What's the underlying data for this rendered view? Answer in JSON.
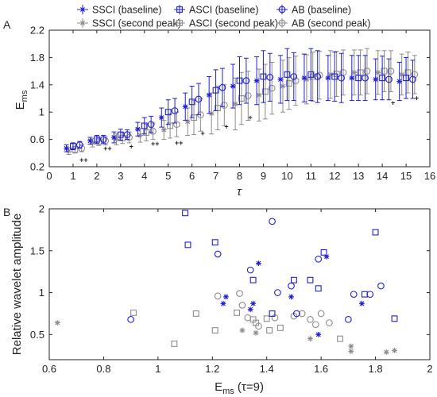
{
  "colors": {
    "baseline": "#1f1fd4",
    "second_peak": "#8c8c8c",
    "axis": "#222222"
  },
  "chart_data": [
    {
      "panel_label": "A",
      "type": "errorbar",
      "xlabel": "τ",
      "ylabel_main": "E",
      "ylabel_sub": "ms",
      "xlim": [
        0,
        16
      ],
      "ylim": [
        0.2,
        2.2
      ],
      "xticks": [
        "0",
        "1",
        "2",
        "3",
        "4",
        "5",
        "6",
        "7",
        "8",
        "9",
        "10",
        "11",
        "12",
        "13",
        "14",
        "15",
        "16"
      ],
      "yticks": [
        "0.2",
        "0.6",
        "1",
        "1.4",
        "1.8",
        "2.2"
      ],
      "grid": false,
      "legend_position": "top",
      "legend": [
        {
          "label": "SSCI (baseline)",
          "marker": "asterisk",
          "group": "baseline"
        },
        {
          "label": "ASCI (baseline)",
          "marker": "square",
          "group": "baseline"
        },
        {
          "label": "AB (baseline)",
          "marker": "circle",
          "group": "baseline"
        },
        {
          "label": "SSCI (second peak)",
          "marker": "asterisk",
          "group": "second_peak"
        },
        {
          "label": "ASCI (second peak)",
          "marker": "square",
          "group": "second_peak"
        },
        {
          "label": "AB (second peak)",
          "marker": "circle",
          "group": "second_peak"
        }
      ],
      "x": [
        1,
        2,
        3,
        4,
        5,
        6,
        7,
        8,
        9,
        10,
        11,
        12,
        13,
        14,
        15
      ],
      "series": [
        {
          "name": "SSCI (baseline)",
          "marker": "asterisk",
          "group": "baseline",
          "offset": -0.28,
          "values": [
            0.47,
            0.58,
            0.63,
            0.75,
            0.92,
            1.08,
            1.25,
            1.38,
            1.46,
            1.48,
            1.5,
            1.5,
            1.5,
            1.48,
            1.45
          ],
          "err": [
            0.05,
            0.05,
            0.08,
            0.1,
            0.14,
            0.2,
            0.27,
            0.32,
            0.35,
            0.35,
            0.35,
            0.33,
            0.33,
            0.3,
            0.28
          ]
        },
        {
          "name": "ASCI (baseline)",
          "marker": "square",
          "group": "baseline",
          "offset": 0.0,
          "values": [
            0.5,
            0.6,
            0.67,
            0.8,
            1.0,
            1.15,
            1.32,
            1.46,
            1.52,
            1.55,
            1.55,
            1.52,
            1.5,
            1.5,
            1.5
          ],
          "err": [
            0.05,
            0.06,
            0.08,
            0.12,
            0.18,
            0.23,
            0.3,
            0.35,
            0.38,
            0.38,
            0.38,
            0.36,
            0.33,
            0.32,
            0.3
          ]
        },
        {
          "name": "AB (baseline)",
          "marker": "circle",
          "group": "baseline",
          "offset": 0.28,
          "values": [
            0.52,
            0.6,
            0.67,
            0.82,
            1.02,
            1.19,
            1.36,
            1.46,
            1.51,
            1.52,
            1.52,
            1.5,
            1.5,
            1.48,
            1.48
          ],
          "err": [
            0.05,
            0.06,
            0.07,
            0.12,
            0.18,
            0.23,
            0.28,
            0.33,
            0.35,
            0.35,
            0.38,
            0.36,
            0.33,
            0.3,
            0.28
          ]
        },
        {
          "name": "SSCI (second peak)",
          "marker": "asterisk",
          "group": "second_peak",
          "offset": -0.18,
          "values": [
            0.43,
            0.55,
            0.6,
            0.66,
            0.74,
            0.86,
            0.98,
            1.12,
            1.25,
            1.38,
            1.48,
            1.55,
            1.58,
            1.58,
            1.55
          ],
          "err": [
            0.05,
            0.06,
            0.08,
            0.1,
            0.14,
            0.2,
            0.3,
            0.38,
            0.38,
            0.38,
            0.36,
            0.35,
            0.33,
            0.32,
            0.3
          ]
        },
        {
          "name": "ASCI (second peak)",
          "marker": "square",
          "group": "second_peak",
          "offset": 0.08,
          "values": [
            0.45,
            0.57,
            0.62,
            0.7,
            0.8,
            0.92,
            1.06,
            1.2,
            1.3,
            1.42,
            1.52,
            1.56,
            1.58,
            1.6,
            1.58
          ],
          "err": [
            0.05,
            0.06,
            0.08,
            0.12,
            0.18,
            0.25,
            0.32,
            0.38,
            0.4,
            0.38,
            0.36,
            0.33,
            0.33,
            0.3,
            0.3
          ]
        },
        {
          "name": "AB (second peak)",
          "marker": "circle",
          "group": "second_peak",
          "offset": 0.36,
          "values": [
            0.47,
            0.58,
            0.63,
            0.72,
            0.82,
            0.96,
            1.1,
            1.24,
            1.35,
            1.46,
            1.54,
            1.58,
            1.6,
            1.6,
            1.55
          ],
          "err": [
            0.05,
            0.06,
            0.08,
            0.12,
            0.18,
            0.24,
            0.3,
            0.36,
            0.38,
            0.36,
            0.35,
            0.33,
            0.33,
            0.3,
            0.28
          ]
        }
      ],
      "significance": [
        {
          "x": 1,
          "marks": "++"
        },
        {
          "x": 2,
          "marks": "++"
        },
        {
          "x": 3,
          "marks": "+"
        },
        {
          "x": 4,
          "marks": "++"
        },
        {
          "x": 5,
          "marks": "++"
        },
        {
          "x": 6,
          "marks": "+"
        },
        {
          "x": 7,
          "marks": "+"
        },
        {
          "x": 8,
          "marks": "+"
        },
        {
          "x": 14,
          "marks": "+"
        },
        {
          "x": 15,
          "marks": "+"
        }
      ],
      "significance_y": [
        0.31,
        0.48,
        0.51,
        0.55,
        0.56,
        0.7,
        0.8,
        0.93,
        0,
        0,
        0,
        0,
        0,
        1.15,
        1.22
      ]
    },
    {
      "panel_label": "B",
      "type": "scatter",
      "xlabel_main": "E",
      "xlabel_sub": "ms",
      "xlabel_suffix": " (τ=9)",
      "ylabel": "Relative wavelet amplitude",
      "xlim": [
        0.6,
        2.0
      ],
      "ylim": [
        0.2,
        2.0
      ],
      "xticks": [
        "0.6",
        "0.8",
        "1",
        "1.2",
        "1.4",
        "1.6",
        "1.8",
        "2"
      ],
      "yticks": [
        "0.5",
        "1",
        "1.5",
        "2"
      ],
      "grid": false,
      "series": [
        {
          "name": "SSCI (baseline)",
          "marker": "asterisk",
          "group": "baseline",
          "points": [
            [
              1.24,
              0.87
            ],
            [
              1.25,
              0.95
            ],
            [
              1.34,
              0.8
            ],
            [
              1.35,
              0.87
            ],
            [
              1.37,
              1.35
            ],
            [
              1.49,
              0.95
            ],
            [
              1.59,
              0.5
            ],
            [
              1.62,
              1.43
            ],
            [
              1.75,
              0.87
            ]
          ]
        },
        {
          "name": "ASCI (baseline)",
          "marker": "square",
          "group": "baseline",
          "points": [
            [
              1.1,
              1.95
            ],
            [
              1.11,
              1.57
            ],
            [
              1.21,
              1.6
            ],
            [
              1.35,
              1.15
            ],
            [
              1.42,
              0.75
            ],
            [
              1.5,
              1.15
            ],
            [
              1.56,
              1.15
            ],
            [
              1.59,
              1.05
            ],
            [
              1.61,
              1.48
            ],
            [
              1.76,
              0.98
            ],
            [
              1.8,
              1.72
            ],
            [
              1.87,
              0.69
            ]
          ]
        },
        {
          "name": "AB (baseline)",
          "marker": "circle",
          "group": "baseline",
          "points": [
            [
              0.9,
              0.68
            ],
            [
              1.22,
              1.46
            ],
            [
              1.34,
              1.27
            ],
            [
              1.42,
              1.85
            ],
            [
              1.44,
              1.0
            ],
            [
              1.49,
              1.08
            ],
            [
              1.51,
              0.75
            ],
            [
              1.59,
              1.4
            ],
            [
              1.7,
              0.68
            ],
            [
              1.72,
              0.98
            ],
            [
              1.78,
              0.98
            ],
            [
              1.82,
              1.08
            ]
          ]
        },
        {
          "name": "SSCI (second peak)",
          "marker": "asterisk",
          "group": "second_peak",
          "points": [
            [
              0.63,
              0.64
            ],
            [
              1.31,
              0.55
            ],
            [
              1.36,
              0.52
            ],
            [
              1.56,
              0.45
            ],
            [
              1.71,
              0.3
            ],
            [
              1.71,
              0.36
            ],
            [
              1.84,
              0.29
            ],
            [
              1.87,
              0.31
            ]
          ]
        },
        {
          "name": "ASCI (second peak)",
          "marker": "square",
          "group": "second_peak",
          "points": [
            [
              0.91,
              0.76
            ],
            [
              1.06,
              0.39
            ],
            [
              1.14,
              0.75
            ],
            [
              1.21,
              0.55
            ],
            [
              1.29,
              0.76
            ],
            [
              1.35,
              0.68
            ],
            [
              1.36,
              0.64
            ],
            [
              1.4,
              0.69
            ],
            [
              1.41,
              0.55
            ],
            [
              1.45,
              0.58
            ],
            [
              1.67,
              0.45
            ]
          ]
        },
        {
          "name": "AB (second peak)",
          "marker": "circle",
          "group": "second_peak",
          "points": [
            [
              1.22,
              0.96
            ],
            [
              1.3,
              0.99
            ],
            [
              1.31,
              0.85
            ],
            [
              1.33,
              0.7
            ],
            [
              1.37,
              0.6
            ],
            [
              1.43,
              0.7
            ],
            [
              1.5,
              0.72
            ],
            [
              1.53,
              0.75
            ],
            [
              1.56,
              0.68
            ],
            [
              1.58,
              0.62
            ],
            [
              1.6,
              0.75
            ],
            [
              1.63,
              0.64
            ]
          ]
        }
      ]
    }
  ]
}
